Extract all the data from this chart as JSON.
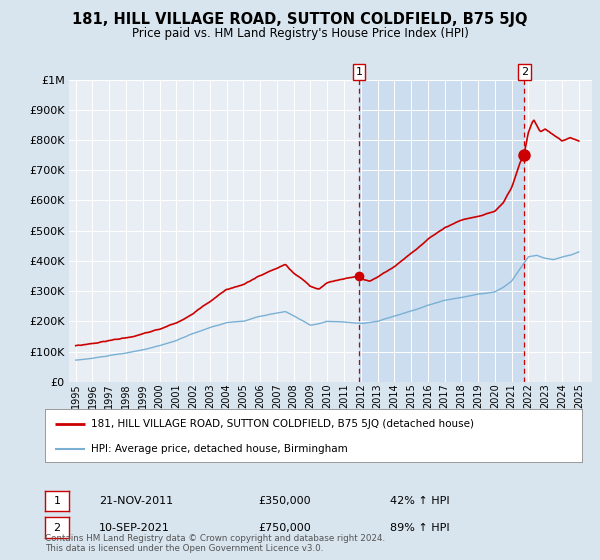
{
  "title": "181, HILL VILLAGE ROAD, SUTTON COLDFIELD, B75 5JQ",
  "subtitle": "Price paid vs. HM Land Registry's House Price Index (HPI)",
  "background_color": "#d8e4ee",
  "plot_bg_color": "#e8eef4",
  "shade_color": "#ccddf0",
  "ylim": [
    0,
    1000000
  ],
  "yticks": [
    0,
    100000,
    200000,
    300000,
    400000,
    500000,
    600000,
    700000,
    800000,
    900000,
    1000000
  ],
  "ytick_labels": [
    "£0",
    "£100K",
    "£200K",
    "£300K",
    "£400K",
    "£500K",
    "£600K",
    "£700K",
    "£800K",
    "£900K",
    "£1M"
  ],
  "sale1_x": 2011.9,
  "sale1_y": 350000,
  "sale2_x": 2021.75,
  "sale2_y": 750000,
  "legend_line1": "181, HILL VILLAGE ROAD, SUTTON COLDFIELD, B75 5JQ (detached house)",
  "legend_line2": "HPI: Average price, detached house, Birmingham",
  "note1_date": "21-NOV-2011",
  "note1_price": "£350,000",
  "note1_hpi": "42% ↑ HPI",
  "note2_date": "10-SEP-2021",
  "note2_price": "£750,000",
  "note2_hpi": "89% ↑ HPI",
  "footer": "Contains HM Land Registry data © Crown copyright and database right 2024.\nThis data is licensed under the Open Government Licence v3.0.",
  "red_color": "#cc0000",
  "blue_color": "#7ab0d4",
  "grid_color": "#ffffff",
  "tick_years": [
    1995,
    1996,
    1997,
    1998,
    1999,
    2000,
    2001,
    2002,
    2003,
    2004,
    2005,
    2006,
    2007,
    2008,
    2009,
    2010,
    2011,
    2012,
    2013,
    2014,
    2015,
    2016,
    2017,
    2018,
    2019,
    2020,
    2021,
    2022,
    2023,
    2024,
    2025
  ],
  "xlim_left": 1994.6,
  "xlim_right": 2025.8
}
